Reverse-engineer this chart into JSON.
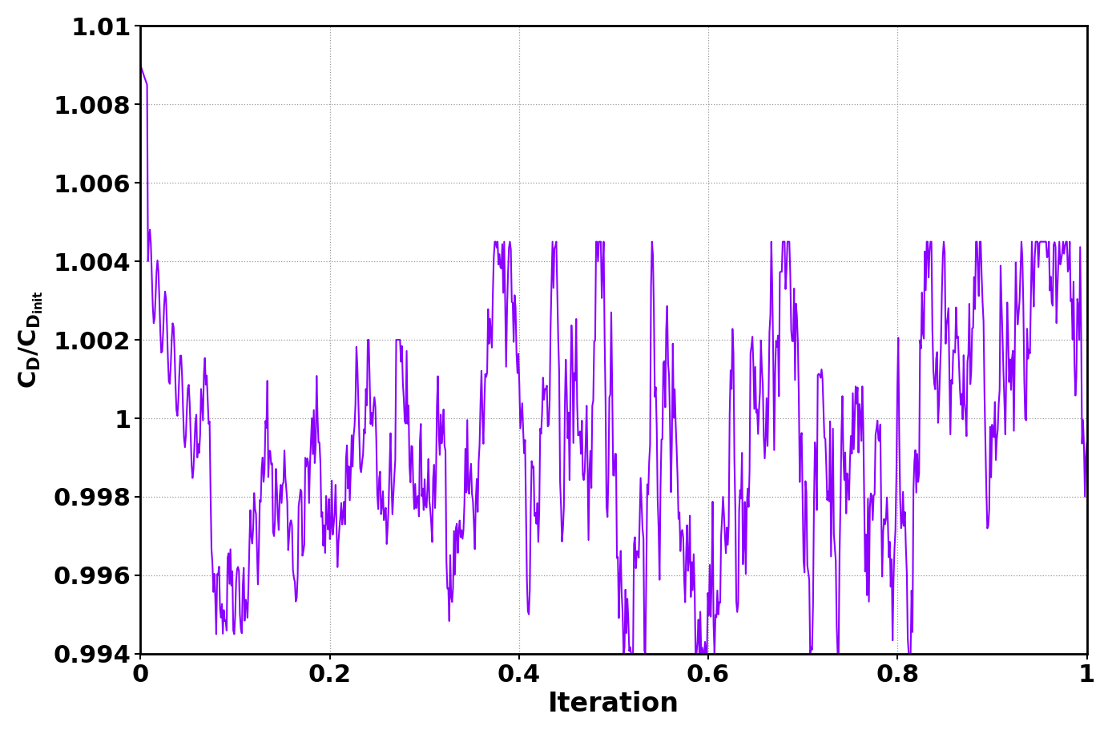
{
  "title": "",
  "xlabel": "Iteration",
  "ylabel_line1": "C",
  "xlim": [
    0,
    1
  ],
  "ylim": [
    0.994,
    1.01
  ],
  "yticks": [
    0.994,
    0.996,
    0.998,
    1.0,
    1.002,
    1.004,
    1.006,
    1.008,
    1.01
  ],
  "ytick_labels": [
    "0.994",
    "0.996",
    "0.998",
    "1",
    "1.002",
    "1.004",
    "1.006",
    "1.008",
    "1.01"
  ],
  "xticks": [
    0.0,
    0.2,
    0.4,
    0.6,
    0.8,
    1.0
  ],
  "xtick_labels": [
    "0",
    "0.2",
    "0.4",
    "0.6",
    "0.8",
    "1"
  ],
  "line_color": "#8B00FF",
  "line_width": 1.5,
  "background_color": "#ffffff",
  "grid_linestyle": ":",
  "grid_color": "#999999",
  "grid_linewidth": 0.9,
  "xlabel_fontsize": 24,
  "ylabel_fontsize": 22,
  "tick_fontsize": 22,
  "tick_fontweight": "bold"
}
